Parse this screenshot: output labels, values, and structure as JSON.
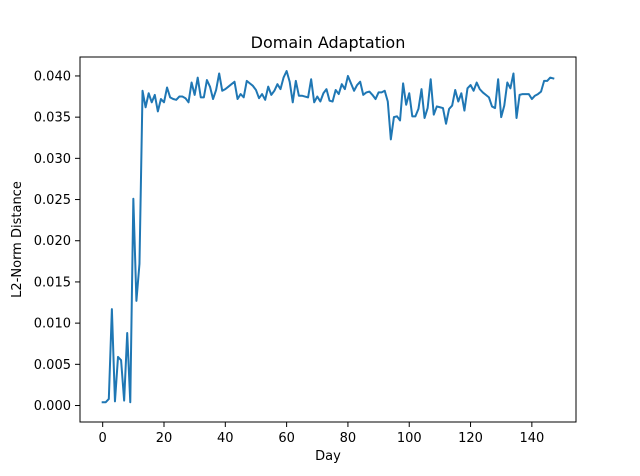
{
  "chart_data": {
    "type": "line",
    "title": "Domain Adaptation",
    "xlabel": "Day",
    "ylabel": "L2-Norm Distance",
    "xlim": [
      -7.4,
      154.4
    ],
    "ylim": [
      -0.002,
      0.0423
    ],
    "xticks": [
      0,
      20,
      40,
      60,
      80,
      100,
      120,
      140
    ],
    "xtick_labels": [
      "0",
      "20",
      "40",
      "60",
      "80",
      "100",
      "120",
      "140"
    ],
    "yticks": [
      0.0,
      0.005,
      0.01,
      0.015,
      0.02,
      0.025,
      0.03,
      0.035,
      0.04
    ],
    "ytick_labels": [
      "0.000",
      "0.005",
      "0.010",
      "0.015",
      "0.020",
      "0.025",
      "0.030",
      "0.035",
      "0.040"
    ],
    "grid": false,
    "legend": "none",
    "series": [
      {
        "color": "#1f77b4",
        "x": [
          0,
          1,
          2,
          3,
          4,
          5,
          6,
          7,
          8,
          9,
          10,
          11,
          12,
          13,
          14,
          15,
          16,
          17,
          18,
          19,
          20,
          21,
          22,
          23,
          24,
          25,
          26,
          27,
          28,
          29,
          30,
          31,
          32,
          33,
          34,
          35,
          36,
          37,
          38,
          39,
          40,
          41,
          42,
          43,
          44,
          45,
          46,
          47,
          48,
          49,
          50,
          51,
          52,
          53,
          54,
          55,
          56,
          57,
          58,
          59,
          60,
          61,
          62,
          63,
          64,
          65,
          66,
          67,
          68,
          69,
          70,
          71,
          72,
          73,
          74,
          75,
          76,
          77,
          78,
          79,
          80,
          81,
          82,
          83,
          84,
          85,
          86,
          87,
          88,
          89,
          90,
          91,
          92,
          93,
          94,
          95,
          96,
          97,
          98,
          99,
          100,
          101,
          102,
          103,
          104,
          105,
          106,
          107,
          108,
          109,
          110,
          111,
          112,
          113,
          114,
          115,
          116,
          117,
          118,
          119,
          120,
          121,
          122,
          123,
          124,
          125,
          126,
          127,
          128,
          129,
          130,
          131,
          132,
          133,
          134,
          135,
          136,
          137,
          138,
          139,
          140,
          141,
          142,
          143,
          144,
          145,
          146,
          147
        ],
        "y": [
          0.0004,
          0.0004,
          0.0008,
          0.0117,
          0.0005,
          0.0059,
          0.0055,
          0.0006,
          0.0088,
          0.0004,
          0.0251,
          0.0127,
          0.0172,
          0.0382,
          0.0362,
          0.0379,
          0.0368,
          0.0377,
          0.0357,
          0.0372,
          0.0368,
          0.0386,
          0.0374,
          0.0372,
          0.0371,
          0.0375,
          0.0375,
          0.0373,
          0.0368,
          0.0392,
          0.0377,
          0.0398,
          0.0374,
          0.0374,
          0.0395,
          0.0387,
          0.0372,
          0.0383,
          0.0403,
          0.0382,
          0.0384,
          0.0387,
          0.039,
          0.0393,
          0.0372,
          0.0378,
          0.0374,
          0.0394,
          0.0391,
          0.0388,
          0.0383,
          0.0373,
          0.0378,
          0.0371,
          0.0387,
          0.0377,
          0.0382,
          0.039,
          0.0384,
          0.0398,
          0.0406,
          0.0393,
          0.0368,
          0.0394,
          0.0376,
          0.0376,
          0.0375,
          0.0374,
          0.0396,
          0.0368,
          0.0375,
          0.0369,
          0.0379,
          0.0384,
          0.037,
          0.0369,
          0.0383,
          0.0378,
          0.039,
          0.0384,
          0.04,
          0.0391,
          0.0382,
          0.0389,
          0.0393,
          0.0377,
          0.038,
          0.0381,
          0.0377,
          0.0372,
          0.038,
          0.038,
          0.0382,
          0.0369,
          0.0323,
          0.035,
          0.0351,
          0.0346,
          0.0391,
          0.0365,
          0.0379,
          0.0351,
          0.0351,
          0.036,
          0.0384,
          0.0349,
          0.0361,
          0.0396,
          0.0353,
          0.0363,
          0.0362,
          0.0361,
          0.0342,
          0.036,
          0.0364,
          0.0383,
          0.0369,
          0.0379,
          0.0358,
          0.0385,
          0.0389,
          0.0382,
          0.0392,
          0.0384,
          0.038,
          0.0377,
          0.0374,
          0.0363,
          0.0361,
          0.0396,
          0.035,
          0.0364,
          0.0392,
          0.0385,
          0.0403,
          0.0349,
          0.0377,
          0.0378,
          0.0378,
          0.0378,
          0.0372,
          0.0376,
          0.0378,
          0.0381,
          0.0394,
          0.0394,
          0.0398,
          0.0397
        ]
      }
    ]
  }
}
